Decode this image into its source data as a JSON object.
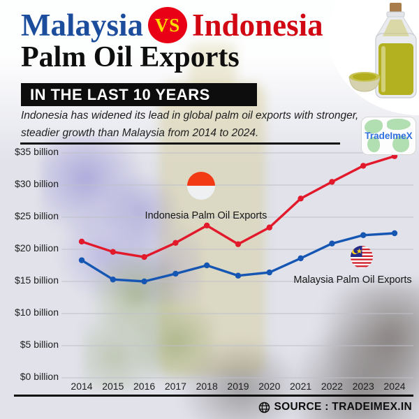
{
  "poster": {
    "title": {
      "left": "Malaysia",
      "vs": "VS",
      "right": "Indonesia"
    },
    "subtitle": "Palm Oil Exports",
    "banner": "IN THE LAST 10 YEARS",
    "description_line1": "Indonesia has widened its lead in global palm oil exports with stronger,",
    "description_line2": "steadier growth than Malaysia from 2014 to 2024.",
    "logo_text": "TradeImeX",
    "source_text": "SOURCE : TRADEIMEX.IN"
  },
  "colors": {
    "background": "#e1e2ea",
    "grid": "#bfc0c9",
    "title_blue": "#1c4d9c",
    "title_red": "#d10713",
    "badge_red": "#e90016",
    "badge_yellow": "#ffdd00",
    "banner_bg": "#0d0d0d",
    "indonesia_line": "#e2182b",
    "malaysia_line": "#1656b3",
    "indonesia_flag_red": "#f23b14",
    "malaysia_flag_red": "#d0232e",
    "malaysia_flag_blue": "#252b8a",
    "malaysia_flag_yellow": "#ffd21c"
  },
  "chart_data": {
    "type": "line",
    "title": "Malaysia vs Indonesia Palm Oil Exports in the last 10 years",
    "unit": "USD billion",
    "x": [
      2014,
      2015,
      2016,
      2017,
      2018,
      2019,
      2020,
      2021,
      2022,
      2023,
      2024
    ],
    "series": [
      {
        "name": "Indonesia Palm Oil Exports",
        "color": "#e2182b",
        "values": [
          21.2,
          19.6,
          18.8,
          21.0,
          23.7,
          20.8,
          23.4,
          27.9,
          30.5,
          33.0,
          34.5
        ]
      },
      {
        "name": "Malaysia Palm Oil Exports",
        "color": "#1656b3",
        "values": [
          18.3,
          15.3,
          15.0,
          16.2,
          17.5,
          15.9,
          16.4,
          18.6,
          20.9,
          22.2,
          22.5
        ]
      }
    ],
    "y_tick_labels": [
      "$0 billion",
      "$5 billion",
      "$10 billion",
      "$15 billion",
      "$20 billion",
      "$25 billion",
      "$30 billion",
      "$35 billion"
    ],
    "y_tick_values": [
      0,
      5,
      10,
      15,
      20,
      25,
      30,
      35
    ],
    "ylim": [
      0,
      37.5
    ],
    "grid": true,
    "legend_position": "inline-labels"
  }
}
